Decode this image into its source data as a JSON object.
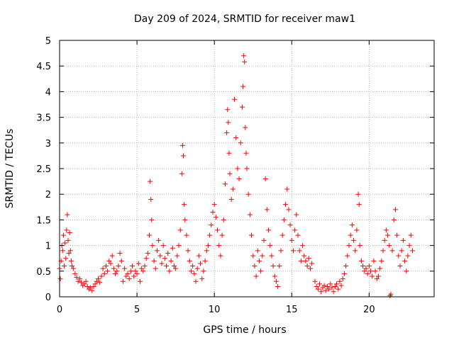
{
  "chart_data": {
    "type": "scatter",
    "title": "Day 209 of 2024, SRMTID for receiver maw1",
    "xlabel": "GPS time / hours",
    "ylabel": "SRMTID / TECUs",
    "xlim": [
      0,
      24.2
    ],
    "ylim": [
      0,
      5
    ],
    "xticks": [
      0,
      5,
      10,
      15,
      20
    ],
    "yticks": [
      0,
      0.5,
      1,
      1.5,
      2,
      2.5,
      3,
      3.5,
      4,
      4.5,
      5
    ],
    "xtick_labels": [
      "0",
      "5",
      "10",
      "15",
      "20"
    ],
    "ytick_labels": [
      "0",
      "0.5",
      "1",
      "1.5",
      "2",
      "2.5",
      "3",
      "3.5",
      "4",
      "4.5",
      "5"
    ],
    "grid": true,
    "marker": "+",
    "color": "#ff0000",
    "series": [
      {
        "name": "maw1",
        "points": [
          [
            0.0,
            0.55
          ],
          [
            0.05,
            0.35
          ],
          [
            0.1,
            0.7
          ],
          [
            0.15,
            1.0
          ],
          [
            0.2,
            0.9
          ],
          [
            0.25,
            1.2
          ],
          [
            0.3,
            0.6
          ],
          [
            0.35,
            1.05
          ],
          [
            0.4,
            0.75
          ],
          [
            0.45,
            1.3
          ],
          [
            0.5,
            1.6
          ],
          [
            0.55,
            1.1
          ],
          [
            0.6,
            0.85
          ],
          [
            0.65,
            1.25
          ],
          [
            0.7,
            0.9
          ],
          [
            0.75,
            0.7
          ],
          [
            0.8,
            0.6
          ],
          [
            0.9,
            0.55
          ],
          [
            1.0,
            0.45
          ],
          [
            1.1,
            0.38
          ],
          [
            1.2,
            0.3
          ],
          [
            1.3,
            0.35
          ],
          [
            1.4,
            0.28
          ],
          [
            1.5,
            0.22
          ],
          [
            1.6,
            0.25
          ],
          [
            1.7,
            0.3
          ],
          [
            1.8,
            0.2
          ],
          [
            1.9,
            0.15
          ],
          [
            2.0,
            0.18
          ],
          [
            2.1,
            0.12
          ],
          [
            2.2,
            0.2
          ],
          [
            2.3,
            0.25
          ],
          [
            2.4,
            0.3
          ],
          [
            2.5,
            0.35
          ],
          [
            2.6,
            0.28
          ],
          [
            2.7,
            0.4
          ],
          [
            2.8,
            0.55
          ],
          [
            2.9,
            0.45
          ],
          [
            3.0,
            0.6
          ],
          [
            3.1,
            0.5
          ],
          [
            3.2,
            0.7
          ],
          [
            3.3,
            0.65
          ],
          [
            3.4,
            0.8
          ],
          [
            3.5,
            0.55
          ],
          [
            3.6,
            0.45
          ],
          [
            3.7,
            0.5
          ],
          [
            3.8,
            0.6
          ],
          [
            3.9,
            0.85
          ],
          [
            4.0,
            0.7
          ],
          [
            4.1,
            0.3
          ],
          [
            4.2,
            0.55
          ],
          [
            4.3,
            0.4
          ],
          [
            4.4,
            0.45
          ],
          [
            4.5,
            0.35
          ],
          [
            4.6,
            0.5
          ],
          [
            4.7,
            0.6
          ],
          [
            4.8,
            0.4
          ],
          [
            4.9,
            0.5
          ],
          [
            5.0,
            0.45
          ],
          [
            5.1,
            0.65
          ],
          [
            5.2,
            0.3
          ],
          [
            5.3,
            0.55
          ],
          [
            5.4,
            0.5
          ],
          [
            5.5,
            0.6
          ],
          [
            5.6,
            0.75
          ],
          [
            5.7,
            0.85
          ],
          [
            5.8,
            1.2
          ],
          [
            5.85,
            2.25
          ],
          [
            5.9,
            1.9
          ],
          [
            5.95,
            1.5
          ],
          [
            6.0,
            1.0
          ],
          [
            6.1,
            0.7
          ],
          [
            6.2,
            0.55
          ],
          [
            6.3,
            0.9
          ],
          [
            6.4,
            1.1
          ],
          [
            6.5,
            0.8
          ],
          [
            6.6,
            0.65
          ],
          [
            6.7,
            1.0
          ],
          [
            6.8,
            0.75
          ],
          [
            6.9,
            0.6
          ],
          [
            7.0,
            0.85
          ],
          [
            7.1,
            0.5
          ],
          [
            7.2,
            0.7
          ],
          [
            7.3,
            0.95
          ],
          [
            7.4,
            0.6
          ],
          [
            7.5,
            0.55
          ],
          [
            7.6,
            0.8
          ],
          [
            7.7,
            1.0
          ],
          [
            7.8,
            1.3
          ],
          [
            7.9,
            2.4
          ],
          [
            7.95,
            2.95
          ],
          [
            8.0,
            2.75
          ],
          [
            8.05,
            1.8
          ],
          [
            8.1,
            1.5
          ],
          [
            8.2,
            1.2
          ],
          [
            8.3,
            0.9
          ],
          [
            8.4,
            0.7
          ],
          [
            8.5,
            0.5
          ],
          [
            8.6,
            0.6
          ],
          [
            8.7,
            0.45
          ],
          [
            8.8,
            0.3
          ],
          [
            8.9,
            0.55
          ],
          [
            9.0,
            0.8
          ],
          [
            9.1,
            0.65
          ],
          [
            9.2,
            0.35
          ],
          [
            9.3,
            0.5
          ],
          [
            9.4,
            0.7
          ],
          [
            9.5,
            0.9
          ],
          [
            9.6,
            1.0
          ],
          [
            9.7,
            1.2
          ],
          [
            9.8,
            1.4
          ],
          [
            9.9,
            1.65
          ],
          [
            10.0,
            1.8
          ],
          [
            10.1,
            1.55
          ],
          [
            10.2,
            1.3
          ],
          [
            10.3,
            1.0
          ],
          [
            10.4,
            0.8
          ],
          [
            10.5,
            1.2
          ],
          [
            10.6,
            1.5
          ],
          [
            10.7,
            2.2
          ],
          [
            10.8,
            3.2
          ],
          [
            10.85,
            3.65
          ],
          [
            10.9,
            3.4
          ],
          [
            10.95,
            2.8
          ],
          [
            11.0,
            2.4
          ],
          [
            11.1,
            1.9
          ],
          [
            11.2,
            2.1
          ],
          [
            11.3,
            3.85
          ],
          [
            11.4,
            3.1
          ],
          [
            11.5,
            2.5
          ],
          [
            11.6,
            2.3
          ],
          [
            11.7,
            3.0
          ],
          [
            11.8,
            3.7
          ],
          [
            11.85,
            4.1
          ],
          [
            11.9,
            4.7
          ],
          [
            11.95,
            4.58
          ],
          [
            12.0,
            3.3
          ],
          [
            12.05,
            2.8
          ],
          [
            12.1,
            2.5
          ],
          [
            12.2,
            2.0
          ],
          [
            12.3,
            1.6
          ],
          [
            12.4,
            1.2
          ],
          [
            12.5,
            0.8
          ],
          [
            12.6,
            0.6
          ],
          [
            12.7,
            0.4
          ],
          [
            12.8,
            0.9
          ],
          [
            12.9,
            0.7
          ],
          [
            13.0,
            0.5
          ],
          [
            13.1,
            0.8
          ],
          [
            13.2,
            1.1
          ],
          [
            13.3,
            2.3
          ],
          [
            13.4,
            1.7
          ],
          [
            13.5,
            1.3
          ],
          [
            13.6,
            1.0
          ],
          [
            13.7,
            0.8
          ],
          [
            13.8,
            0.6
          ],
          [
            13.9,
            0.4
          ],
          [
            14.0,
            0.3
          ],
          [
            14.1,
            0.2
          ],
          [
            14.2,
            0.6
          ],
          [
            14.3,
            0.9
          ],
          [
            14.4,
            1.2
          ],
          [
            14.5,
            1.5
          ],
          [
            14.6,
            1.8
          ],
          [
            14.7,
            2.1
          ],
          [
            14.8,
            1.7
          ],
          [
            14.9,
            1.4
          ],
          [
            15.0,
            1.1
          ],
          [
            15.1,
            0.9
          ],
          [
            15.2,
            1.3
          ],
          [
            15.3,
            1.6
          ],
          [
            15.4,
            1.2
          ],
          [
            15.5,
            0.9
          ],
          [
            15.6,
            0.7
          ],
          [
            15.7,
            1.0
          ],
          [
            15.8,
            0.8
          ],
          [
            15.9,
            0.7
          ],
          [
            16.0,
            0.6
          ],
          [
            16.1,
            0.75
          ],
          [
            16.2,
            0.55
          ],
          [
            16.3,
            0.65
          ],
          [
            16.5,
            0.3
          ],
          [
            16.6,
            0.2
          ],
          [
            16.7,
            0.15
          ],
          [
            16.8,
            0.25
          ],
          [
            16.9,
            0.1
          ],
          [
            17.0,
            0.18
          ],
          [
            17.1,
            0.22
          ],
          [
            17.2,
            0.12
          ],
          [
            17.3,
            0.2
          ],
          [
            17.4,
            0.15
          ],
          [
            17.5,
            0.25
          ],
          [
            17.6,
            0.18
          ],
          [
            17.7,
            0.1
          ],
          [
            17.8,
            0.2
          ],
          [
            17.9,
            0.25
          ],
          [
            18.0,
            0.15
          ],
          [
            18.1,
            0.3
          ],
          [
            18.2,
            0.22
          ],
          [
            18.3,
            0.35
          ],
          [
            18.4,
            0.45
          ],
          [
            18.5,
            0.6
          ],
          [
            18.6,
            0.8
          ],
          [
            18.7,
            1.0
          ],
          [
            18.8,
            1.2
          ],
          [
            18.9,
            1.4
          ],
          [
            19.0,
            1.1
          ],
          [
            19.1,
            0.9
          ],
          [
            19.2,
            1.3
          ],
          [
            19.3,
            2.0
          ],
          [
            19.35,
            1.8
          ],
          [
            19.4,
            1.0
          ],
          [
            19.5,
            0.7
          ],
          [
            19.6,
            0.6
          ],
          [
            19.7,
            0.5
          ],
          [
            19.8,
            0.55
          ],
          [
            19.9,
            0.45
          ],
          [
            20.0,
            0.6
          ],
          [
            20.1,
            0.5
          ],
          [
            20.2,
            0.4
          ],
          [
            20.3,
            0.7
          ],
          [
            20.4,
            0.5
          ],
          [
            20.5,
            0.35
          ],
          [
            20.6,
            0.4
          ],
          [
            20.7,
            0.55
          ],
          [
            20.8,
            0.7
          ],
          [
            20.9,
            0.9
          ],
          [
            21.0,
            1.1
          ],
          [
            21.1,
            1.3
          ],
          [
            21.2,
            1.2
          ],
          [
            21.3,
            1.0
          ],
          [
            21.35,
            0.02
          ],
          [
            21.4,
            0.05
          ],
          [
            21.5,
            0.9
          ],
          [
            21.6,
            1.5
          ],
          [
            21.7,
            1.7
          ],
          [
            21.8,
            1.2
          ],
          [
            21.9,
            0.8
          ],
          [
            22.0,
            0.6
          ],
          [
            22.1,
            0.9
          ],
          [
            22.2,
            1.1
          ],
          [
            22.3,
            0.7
          ],
          [
            22.4,
            0.5
          ],
          [
            22.5,
            0.8
          ],
          [
            22.6,
            1.0
          ],
          [
            22.7,
            1.2
          ],
          [
            22.8,
            0.9
          ]
        ]
      }
    ]
  }
}
